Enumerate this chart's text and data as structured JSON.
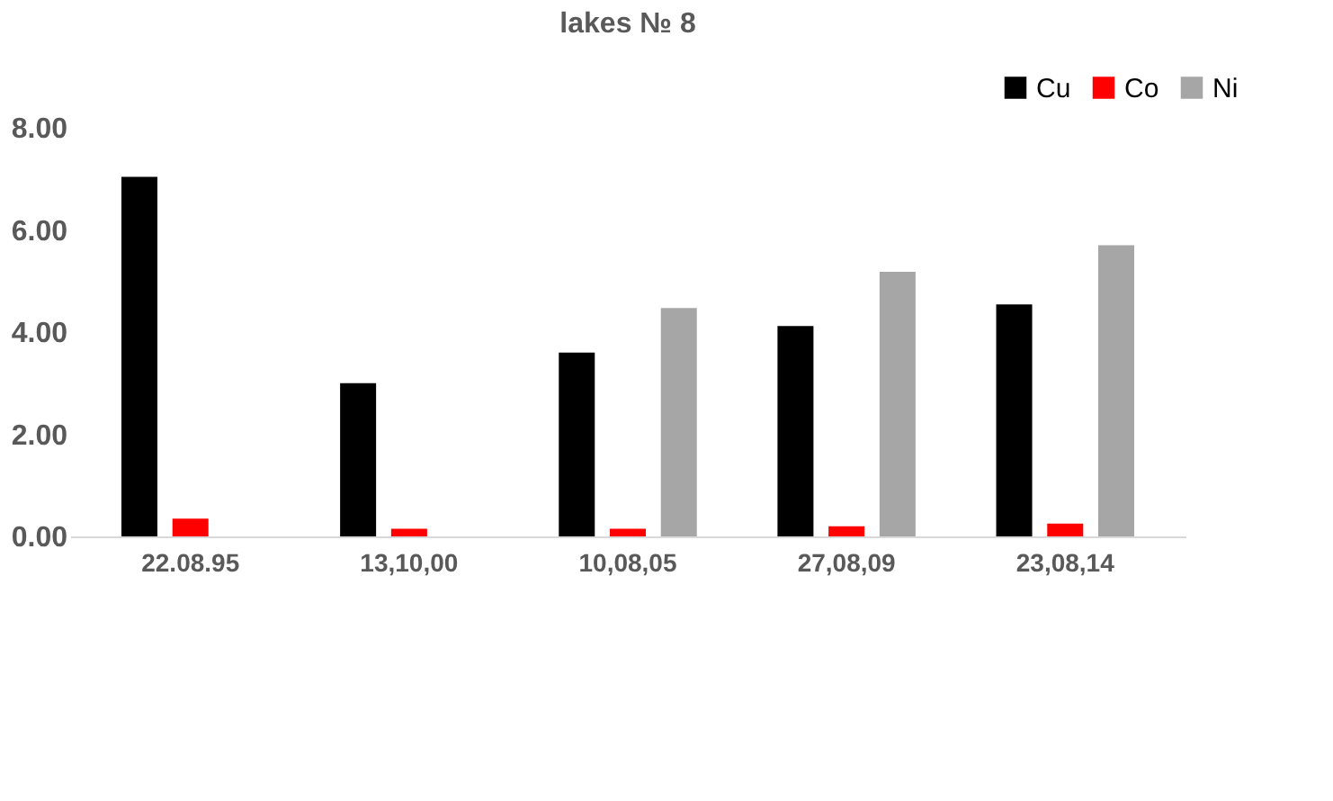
{
  "chart_data": {
    "type": "bar",
    "title": "lakes № 8",
    "categories": [
      "22.08.95",
      "13,10,00",
      "10,08,05",
      "27,08,09",
      "23,08,14"
    ],
    "series": [
      {
        "name": "Cu",
        "color": "#000000",
        "values": [
          7.04,
          3.0,
          3.6,
          4.12,
          4.54
        ]
      },
      {
        "name": "Co",
        "color": "#ff0000",
        "values": [
          0.35,
          0.15,
          0.15,
          0.2,
          0.25
        ]
      },
      {
        "name": "Ni",
        "color": "#a6a6a6",
        "values": [
          null,
          null,
          4.47,
          5.18,
          5.7
        ]
      }
    ],
    "ylim": [
      0,
      8
    ],
    "yticks": [
      {
        "value": 0,
        "label": "0.00"
      },
      {
        "value": 2,
        "label": "2.00"
      },
      {
        "value": 4,
        "label": "4.00"
      },
      {
        "value": 6,
        "label": "6.00"
      },
      {
        "value": 8,
        "label": "8.00"
      }
    ],
    "grid": false,
    "legend": "top right"
  }
}
